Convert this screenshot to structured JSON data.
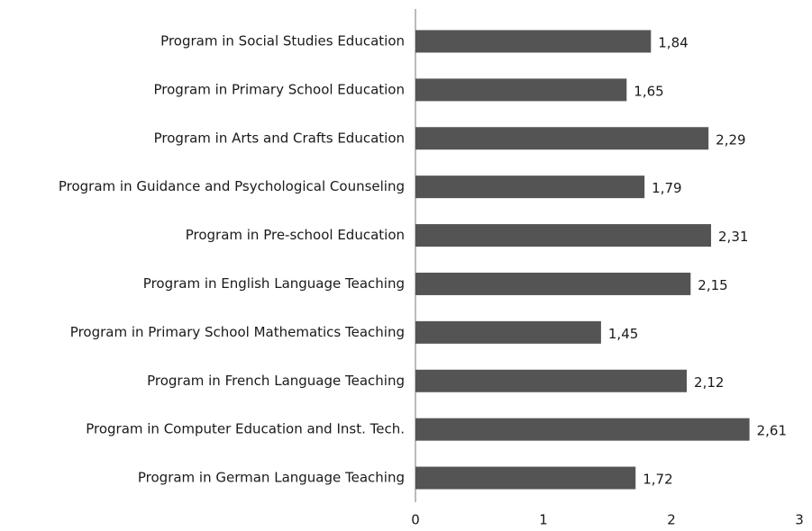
{
  "chart_data": {
    "type": "bar",
    "orientation": "horizontal",
    "categories": [
      "Program in Social Studies Education",
      "Program in Primary School Education",
      "Program in Arts and Crafts Education",
      "Program in Guidance and Psychological Counseling",
      "Program in Pre-school Education",
      "Program in English Language Teaching",
      "Program in Primary School Mathematics Teaching",
      "Program in French Language Teaching",
      "Program in Computer Education and Inst. Tech.",
      "Program in German Language Teaching"
    ],
    "values": [
      1.84,
      1.65,
      2.29,
      1.79,
      2.31,
      2.15,
      1.45,
      2.12,
      2.61,
      1.72
    ],
    "value_labels": [
      "1,84",
      "1,65",
      "2,29",
      "1,79",
      "2,31",
      "2,15",
      "1,45",
      "2,12",
      "2,61",
      "1,72"
    ],
    "color": "#545454",
    "xlim": [
      0,
      3
    ],
    "xticks": [
      0,
      1,
      2,
      3
    ],
    "grid": false
  }
}
